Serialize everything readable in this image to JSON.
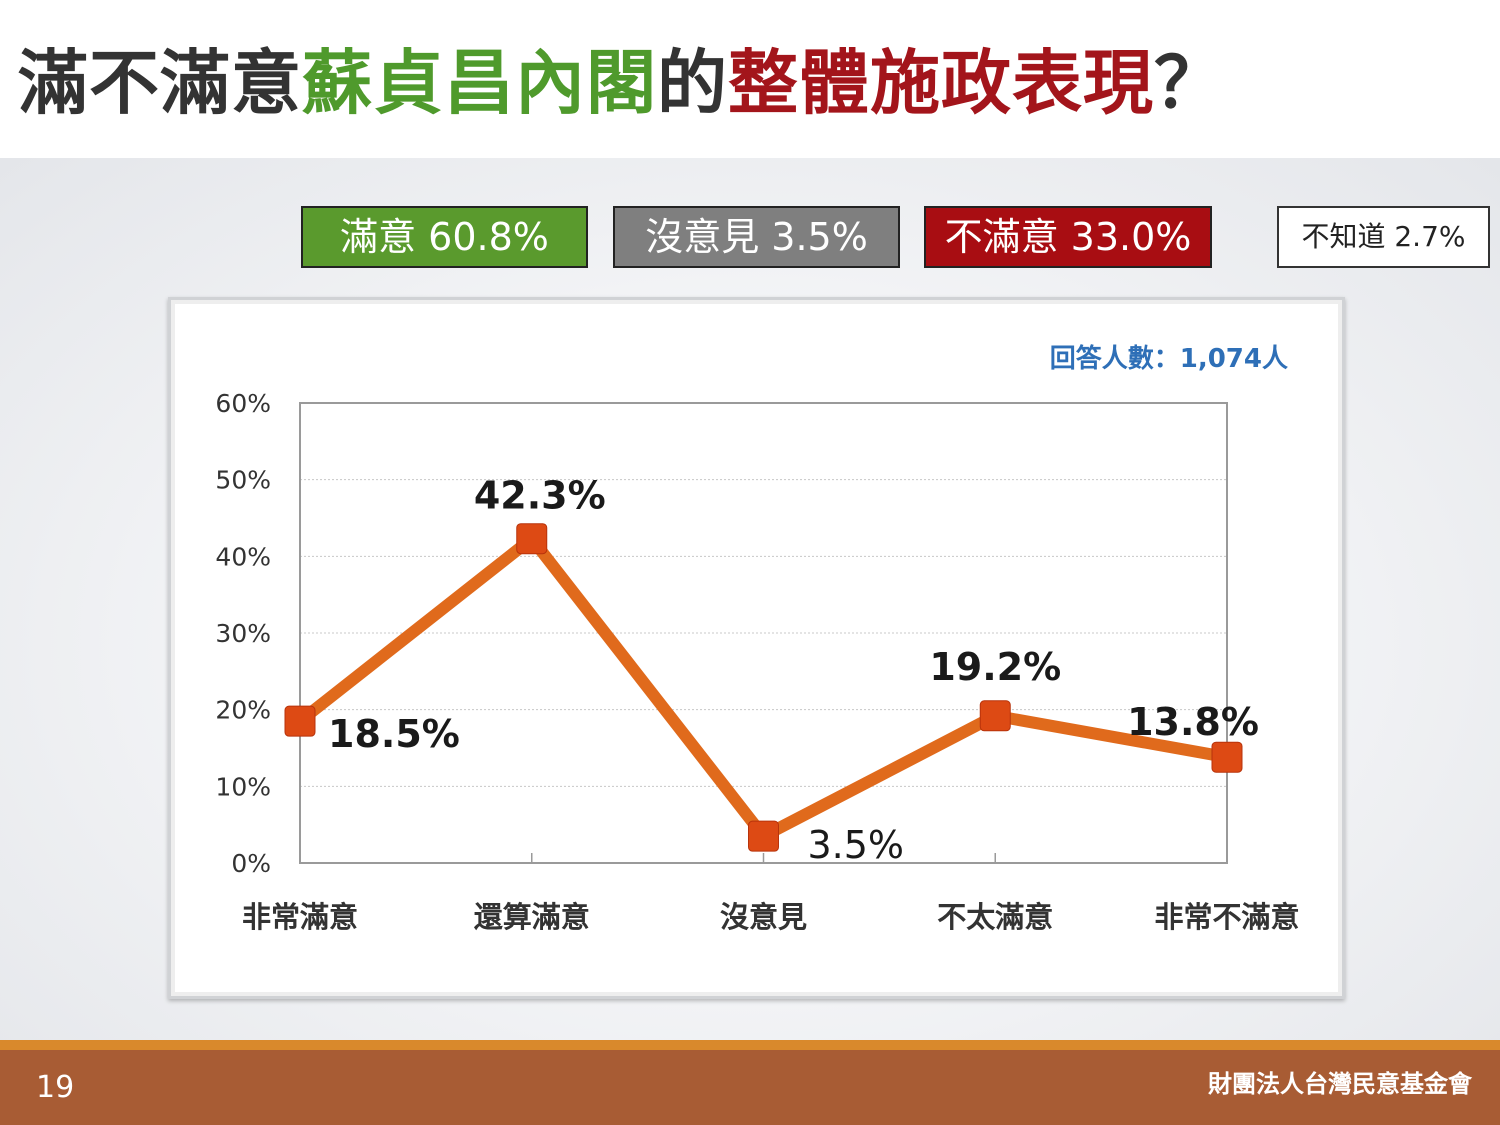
{
  "title": {
    "part1": "滿不滿意",
    "part2": "蘇貞昌內閣",
    "part3": "的",
    "part4": "整體施政表現",
    "part5": "？"
  },
  "summary": {
    "satisfied": "滿意 60.8%",
    "neutral": "沒意見 3.5%",
    "dissatisfied": "不滿意 33.0%",
    "dont_know": "不知道 2.7%"
  },
  "respondents": "回答人數：1,074人",
  "chart_data": {
    "type": "line",
    "categories": [
      "非常滿意",
      "還算滿意",
      "沒意見",
      "不太滿意",
      "非常不滿意"
    ],
    "values": [
      18.5,
      42.3,
      3.5,
      19.2,
      13.8
    ],
    "data_labels": [
      "18.5%",
      "42.3%",
      "3.5%",
      "19.2%",
      "13.8%"
    ],
    "ylim": [
      0,
      60
    ],
    "yticks": [
      "0%",
      "10%",
      "20%",
      "30%",
      "40%",
      "50%",
      "60%"
    ],
    "grid": true,
    "line_color": "#e06a1c",
    "marker_color": "#dd4a14"
  },
  "footer": {
    "page": "19",
    "org": "財團法人台灣民意基金會"
  },
  "colors": {
    "green": "#4f9a2c",
    "red": "#a3151b",
    "footer": "#a85c34",
    "respondents_text": "#2e6fb7"
  }
}
